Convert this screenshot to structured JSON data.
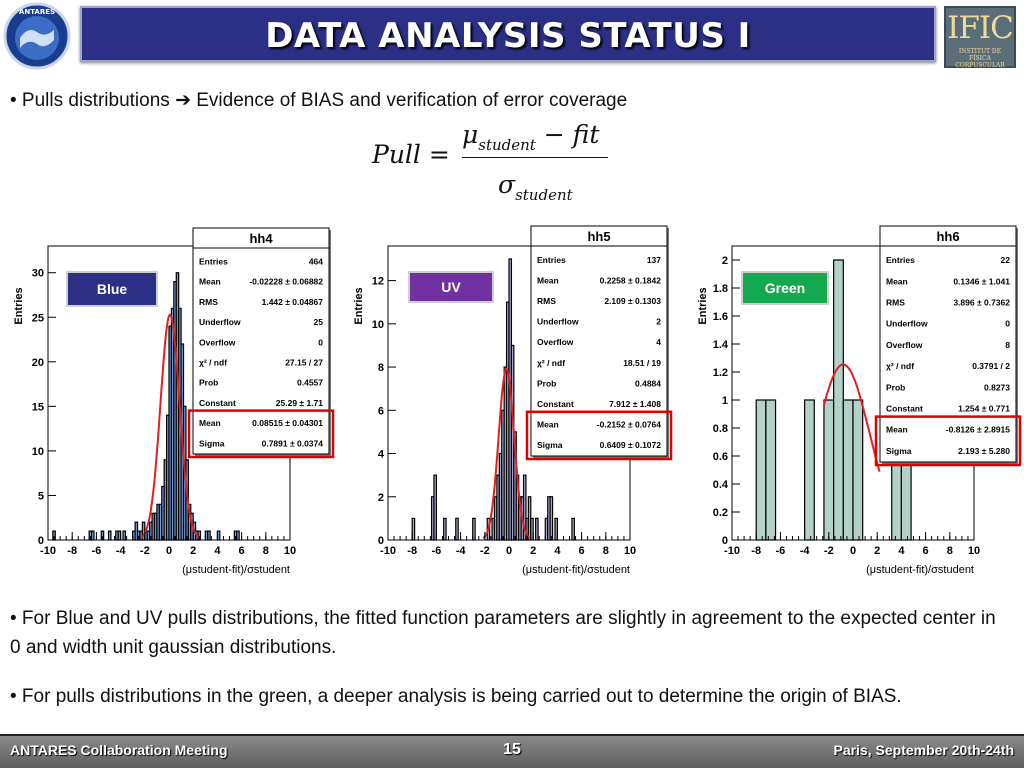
{
  "slide": {
    "title": "DATA ANALYSIS STATUS I",
    "logo_right_text": "IFIC",
    "logo_right_sub": "INSTITUT DE FÍSICA CORPUSCULAR",
    "logo_left_text": "ANTARES",
    "bullet1_pre": "• Pulls distributions ",
    "bullet1_arrow": "➔",
    "bullet1_post": " Evidence of BIAS and verification of error coverage",
    "formula": {
      "lhs": "Pull =",
      "num_mu": "μ",
      "num_sub": "student",
      "num_rest": " − fit",
      "den_sigma": "σ",
      "den_sub": "student"
    },
    "bullet2": "• For Blue and UV pulls distributions, the fitted function parameters are slightly in agreement to the expected center in 0 and width unit gaussian distributions.",
    "bullet3": "• For pulls distributions in the green, a deeper analysis is being carried out to determine the origin of BIAS.",
    "footer_left": "ANTARES Collaboration Meeting",
    "footer_page": "15",
    "footer_right": "Paris, September 20th-24th"
  },
  "chart_data": [
    {
      "type": "bar",
      "name": "hh4",
      "label": "Blue",
      "label_color": "#2b2f85",
      "fill_color": "#7b9bd4",
      "ylabel": "Entries",
      "xlabel": "(μstudent-fit)/σstudent",
      "xlim": [
        -10,
        10
      ],
      "ylim": [
        0,
        33
      ],
      "yticks": [
        0,
        5,
        10,
        15,
        20,
        25,
        30
      ],
      "xticks": [
        -10,
        -8,
        -6,
        -4,
        -2,
        0,
        2,
        4,
        6,
        8,
        10
      ],
      "bins": [
        [
          -9.6,
          1
        ],
        [
          -6.6,
          1
        ],
        [
          -6.4,
          1
        ],
        [
          -5.6,
          1
        ],
        [
          -5.0,
          1
        ],
        [
          -4.4,
          1
        ],
        [
          -4.2,
          1
        ],
        [
          -3.8,
          1
        ],
        [
          -3.0,
          1
        ],
        [
          -2.8,
          2
        ],
        [
          -2.6,
          1
        ],
        [
          -2.4,
          1
        ],
        [
          -2.2,
          2
        ],
        [
          -2.0,
          1
        ],
        [
          -1.8,
          1
        ],
        [
          -1.6,
          2
        ],
        [
          -1.4,
          3
        ],
        [
          -1.2,
          3
        ],
        [
          -1.0,
          4
        ],
        [
          -0.8,
          4
        ],
        [
          -0.6,
          6
        ],
        [
          -0.4,
          9
        ],
        [
          -0.2,
          14
        ],
        [
          0.0,
          24
        ],
        [
          0.2,
          26
        ],
        [
          0.4,
          29
        ],
        [
          0.6,
          30
        ],
        [
          0.8,
          26
        ],
        [
          1.0,
          22
        ],
        [
          1.2,
          15
        ],
        [
          1.4,
          9
        ],
        [
          1.6,
          4
        ],
        [
          1.8,
          3
        ],
        [
          2.0,
          2
        ],
        [
          2.2,
          1
        ],
        [
          2.4,
          1
        ],
        [
          3.0,
          1
        ],
        [
          3.2,
          1
        ],
        [
          4.0,
          1
        ],
        [
          5.4,
          1
        ],
        [
          5.6,
          1
        ]
      ],
      "fit": {
        "constant": 25.29,
        "mean": 0.08515,
        "sigma": 0.7891
      },
      "stats": {
        "title": "hh4",
        "rows": [
          [
            "Entries",
            "464"
          ],
          [
            "Mean",
            "-0.02228 ± 0.06882"
          ],
          [
            "RMS",
            "1.442 ± 0.04867"
          ],
          [
            "Underflow",
            "25"
          ],
          [
            "Overflow",
            "0"
          ],
          [
            "χ² / ndf",
            "27.15 / 27"
          ],
          [
            "Prob",
            "0.4557"
          ],
          [
            "Constant",
            "25.29 ± 1.71"
          ],
          [
            "Mean",
            "0.08515 ± 0.04301"
          ],
          [
            "Sigma",
            "0.7891 ± 0.0374"
          ]
        ]
      }
    },
    {
      "type": "bar",
      "name": "hh5",
      "label": "UV",
      "label_color": "#7030a0",
      "fill_color": "#a9a9cf",
      "ylabel": "Entries",
      "xlabel": "(μstudent-fit)/σstudent",
      "xlim": [
        -10,
        10
      ],
      "ylim": [
        0,
        13.6
      ],
      "yticks": [
        0,
        2,
        4,
        6,
        8,
        10,
        12
      ],
      "xticks": [
        -10,
        -8,
        -6,
        -4,
        -2,
        0,
        2,
        4,
        6,
        8,
        10
      ],
      "bins": [
        [
          -8.0,
          1
        ],
        [
          -6.4,
          2
        ],
        [
          -6.2,
          3
        ],
        [
          -5.4,
          1
        ],
        [
          -4.4,
          1
        ],
        [
          -3.0,
          1
        ],
        [
          -1.8,
          1
        ],
        [
          -1.4,
          1
        ],
        [
          -1.2,
          2
        ],
        [
          -1.0,
          3
        ],
        [
          -0.8,
          4
        ],
        [
          -0.6,
          6
        ],
        [
          -0.4,
          8
        ],
        [
          -0.2,
          11
        ],
        [
          0.0,
          13
        ],
        [
          0.2,
          9
        ],
        [
          0.4,
          5
        ],
        [
          0.6,
          3
        ],
        [
          0.8,
          2
        ],
        [
          1.0,
          2
        ],
        [
          1.2,
          3
        ],
        [
          1.4,
          1
        ],
        [
          1.6,
          2
        ],
        [
          1.8,
          1
        ],
        [
          2.2,
          1
        ],
        [
          3.0,
          1
        ],
        [
          3.2,
          2
        ],
        [
          3.4,
          2
        ],
        [
          3.8,
          1
        ],
        [
          5.2,
          1
        ]
      ],
      "fit": {
        "constant": 7.912,
        "mean": -0.2152,
        "sigma": 0.6409
      },
      "stats": {
        "title": "hh5",
        "rows": [
          [
            "Entries",
            "137"
          ],
          [
            "Mean",
            "0.2258 ± 0.1842"
          ],
          [
            "RMS",
            "2.109 ± 0.1303"
          ],
          [
            "Underflow",
            "2"
          ],
          [
            "Overflow",
            "4"
          ],
          [
            "χ² / ndf",
            "18.51 / 19"
          ],
          [
            "Prob",
            "0.4884"
          ],
          [
            "Constant",
            "7.912 ± 1.408"
          ],
          [
            "Mean",
            "-0.2152 ± 0.0764"
          ],
          [
            "Sigma",
            "0.6409 ± 0.1072"
          ]
        ]
      }
    },
    {
      "type": "bar",
      "name": "hh6",
      "label": "Green",
      "label_color": "#14a850",
      "fill_color": "#b3d1c8",
      "ylabel": "Entries",
      "xlabel": "(μstudent-fit)/σstudent",
      "xlim": [
        -10,
        10
      ],
      "ylim": [
        0,
        2.1
      ],
      "yticks": [
        0,
        0.2,
        0.4,
        0.6,
        0.8,
        1,
        1.2,
        1.4,
        1.6,
        1.8,
        2
      ],
      "xticks": [
        -10,
        -8,
        -6,
        -4,
        -2,
        0,
        2,
        4,
        6,
        8,
        10
      ],
      "bins": [
        [
          -8.0,
          1
        ],
        [
          -7.2,
          1
        ],
        [
          -4.0,
          1
        ],
        [
          -2.4,
          1
        ],
        [
          -1.6,
          2
        ],
        [
          -0.8,
          1
        ],
        [
          0.0,
          1
        ],
        [
          3.2,
          1
        ],
        [
          4.0,
          1
        ]
      ],
      "bin_width": 0.8,
      "fit": {
        "constant": 1.254,
        "mean": -0.8126,
        "sigma": 2.193,
        "range": [
          -2.4,
          2.2
        ]
      },
      "stats": {
        "title": "hh6",
        "rows": [
          [
            "Entries",
            "22"
          ],
          [
            "Mean",
            "0.1346 ± 1.041"
          ],
          [
            "RMS",
            "3.896 ± 0.7362"
          ],
          [
            "Underflow",
            "0"
          ],
          [
            "Overflow",
            "8"
          ],
          [
            "χ² / ndf",
            "0.3791 / 2"
          ],
          [
            "Prob",
            "0.8273"
          ],
          [
            "Constant",
            "1.254 ± 0.771"
          ],
          [
            "Mean",
            "-0.8126 ± 2.8915"
          ],
          [
            "Sigma",
            "2.193 ± 5.280"
          ]
        ]
      }
    }
  ]
}
